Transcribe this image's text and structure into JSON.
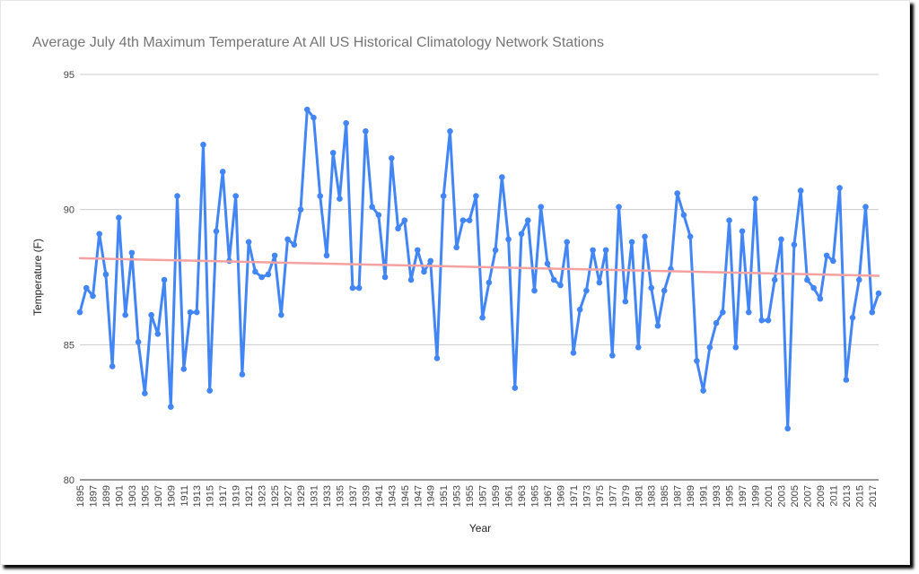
{
  "chart_data": {
    "type": "line",
    "title": "Average July 4th Maximum Temperature At All US Historical Climatology Network Stations",
    "xlabel": "Year",
    "ylabel": "Temperature (F)",
    "ylim": [
      80,
      95
    ],
    "yticks": [
      80,
      85,
      90,
      95
    ],
    "xlim": [
      1895,
      2018
    ],
    "xtick_labels": [
      "1895",
      "1897",
      "1899",
      "1901",
      "1903",
      "1905",
      "1907",
      "1909",
      "1911",
      "1913",
      "1915",
      "1917",
      "1919",
      "1921",
      "1923",
      "1925",
      "1927",
      "1929",
      "1931",
      "1933",
      "1935",
      "1937",
      "1939",
      "1941",
      "1943",
      "1945",
      "1947",
      "1949",
      "1951",
      "1953",
      "1955",
      "1957",
      "1959",
      "1961",
      "1963",
      "1965",
      "1967",
      "1969",
      "1971",
      "1973",
      "1975",
      "1977",
      "1979",
      "1981",
      "1983",
      "1985",
      "1987",
      "1989",
      "1991",
      "1993",
      "1995",
      "1997",
      "1999",
      "2001",
      "2003",
      "2005",
      "2007",
      "2009",
      "2011",
      "2013",
      "2015",
      "2017"
    ],
    "grid": true,
    "series": [
      {
        "color": "#4285f4",
        "x": [
          1895,
          1896,
          1897,
          1898,
          1899,
          1900,
          1901,
          1902,
          1903,
          1904,
          1905,
          1906,
          1907,
          1908,
          1909,
          1910,
          1911,
          1912,
          1913,
          1914,
          1915,
          1916,
          1917,
          1918,
          1919,
          1920,
          1921,
          1922,
          1923,
          1924,
          1925,
          1926,
          1927,
          1928,
          1929,
          1930,
          1931,
          1932,
          1933,
          1934,
          1935,
          1936,
          1937,
          1938,
          1939,
          1940,
          1941,
          1942,
          1943,
          1944,
          1945,
          1946,
          1947,
          1948,
          1949,
          1950,
          1951,
          1952,
          1953,
          1954,
          1955,
          1956,
          1957,
          1958,
          1959,
          1960,
          1961,
          1962,
          1963,
          1964,
          1965,
          1966,
          1967,
          1968,
          1969,
          1970,
          1971,
          1972,
          1973,
          1974,
          1975,
          1976,
          1977,
          1978,
          1979,
          1980,
          1981,
          1982,
          1983,
          1984,
          1985,
          1986,
          1987,
          1988,
          1989,
          1990,
          1991,
          1992,
          1993,
          1994,
          1995,
          1996,
          1997,
          1998,
          1999,
          2000,
          2001,
          2002,
          2003,
          2004,
          2005,
          2006,
          2007,
          2008,
          2009,
          2010,
          2011,
          2012,
          2013,
          2014,
          2015,
          2016,
          2017,
          2018
        ],
        "values": [
          86.2,
          87.1,
          86.8,
          89.1,
          87.6,
          84.2,
          89.7,
          86.1,
          88.4,
          85.1,
          83.2,
          86.1,
          85.4,
          87.4,
          82.7,
          90.5,
          84.1,
          86.2,
          86.2,
          92.4,
          83.3,
          89.2,
          91.4,
          88.1,
          90.5,
          83.9,
          88.8,
          87.7,
          87.5,
          87.6,
          88.3,
          86.1,
          88.9,
          88.7,
          90.0,
          93.7,
          93.4,
          90.5,
          88.3,
          92.1,
          90.4,
          93.2,
          87.1,
          87.1,
          92.9,
          90.1,
          89.8,
          87.5,
          91.9,
          89.3,
          89.6,
          87.4,
          88.5,
          87.7,
          88.1,
          84.5,
          90.5,
          92.9,
          88.6,
          89.6,
          89.6,
          90.5,
          86.0,
          87.3,
          88.5,
          91.2,
          88.9,
          83.4,
          89.1,
          89.6,
          87.0,
          90.1,
          88.0,
          87.4,
          87.2,
          88.8,
          84.7,
          86.3,
          87.0,
          88.5,
          87.3,
          88.5,
          84.6,
          90.1,
          86.6,
          88.8,
          84.9,
          89.0,
          87.1,
          85.7,
          87.0,
          87.8,
          90.6,
          89.8,
          89.0,
          84.4,
          83.3,
          84.9,
          85.8,
          86.2,
          89.6,
          84.9,
          89.2,
          86.2,
          90.4,
          85.9,
          85.9,
          87.4,
          88.9,
          81.9,
          88.7,
          90.7,
          87.4,
          87.1,
          86.7,
          88.3,
          88.1,
          90.8,
          83.7,
          86.0,
          87.4,
          90.1,
          86.2,
          86.9
        ]
      },
      {
        "type": "trendline",
        "color": "#f4a1a1",
        "x": [
          1895,
          2018
        ],
        "values": [
          88.2,
          87.55
        ]
      }
    ]
  }
}
